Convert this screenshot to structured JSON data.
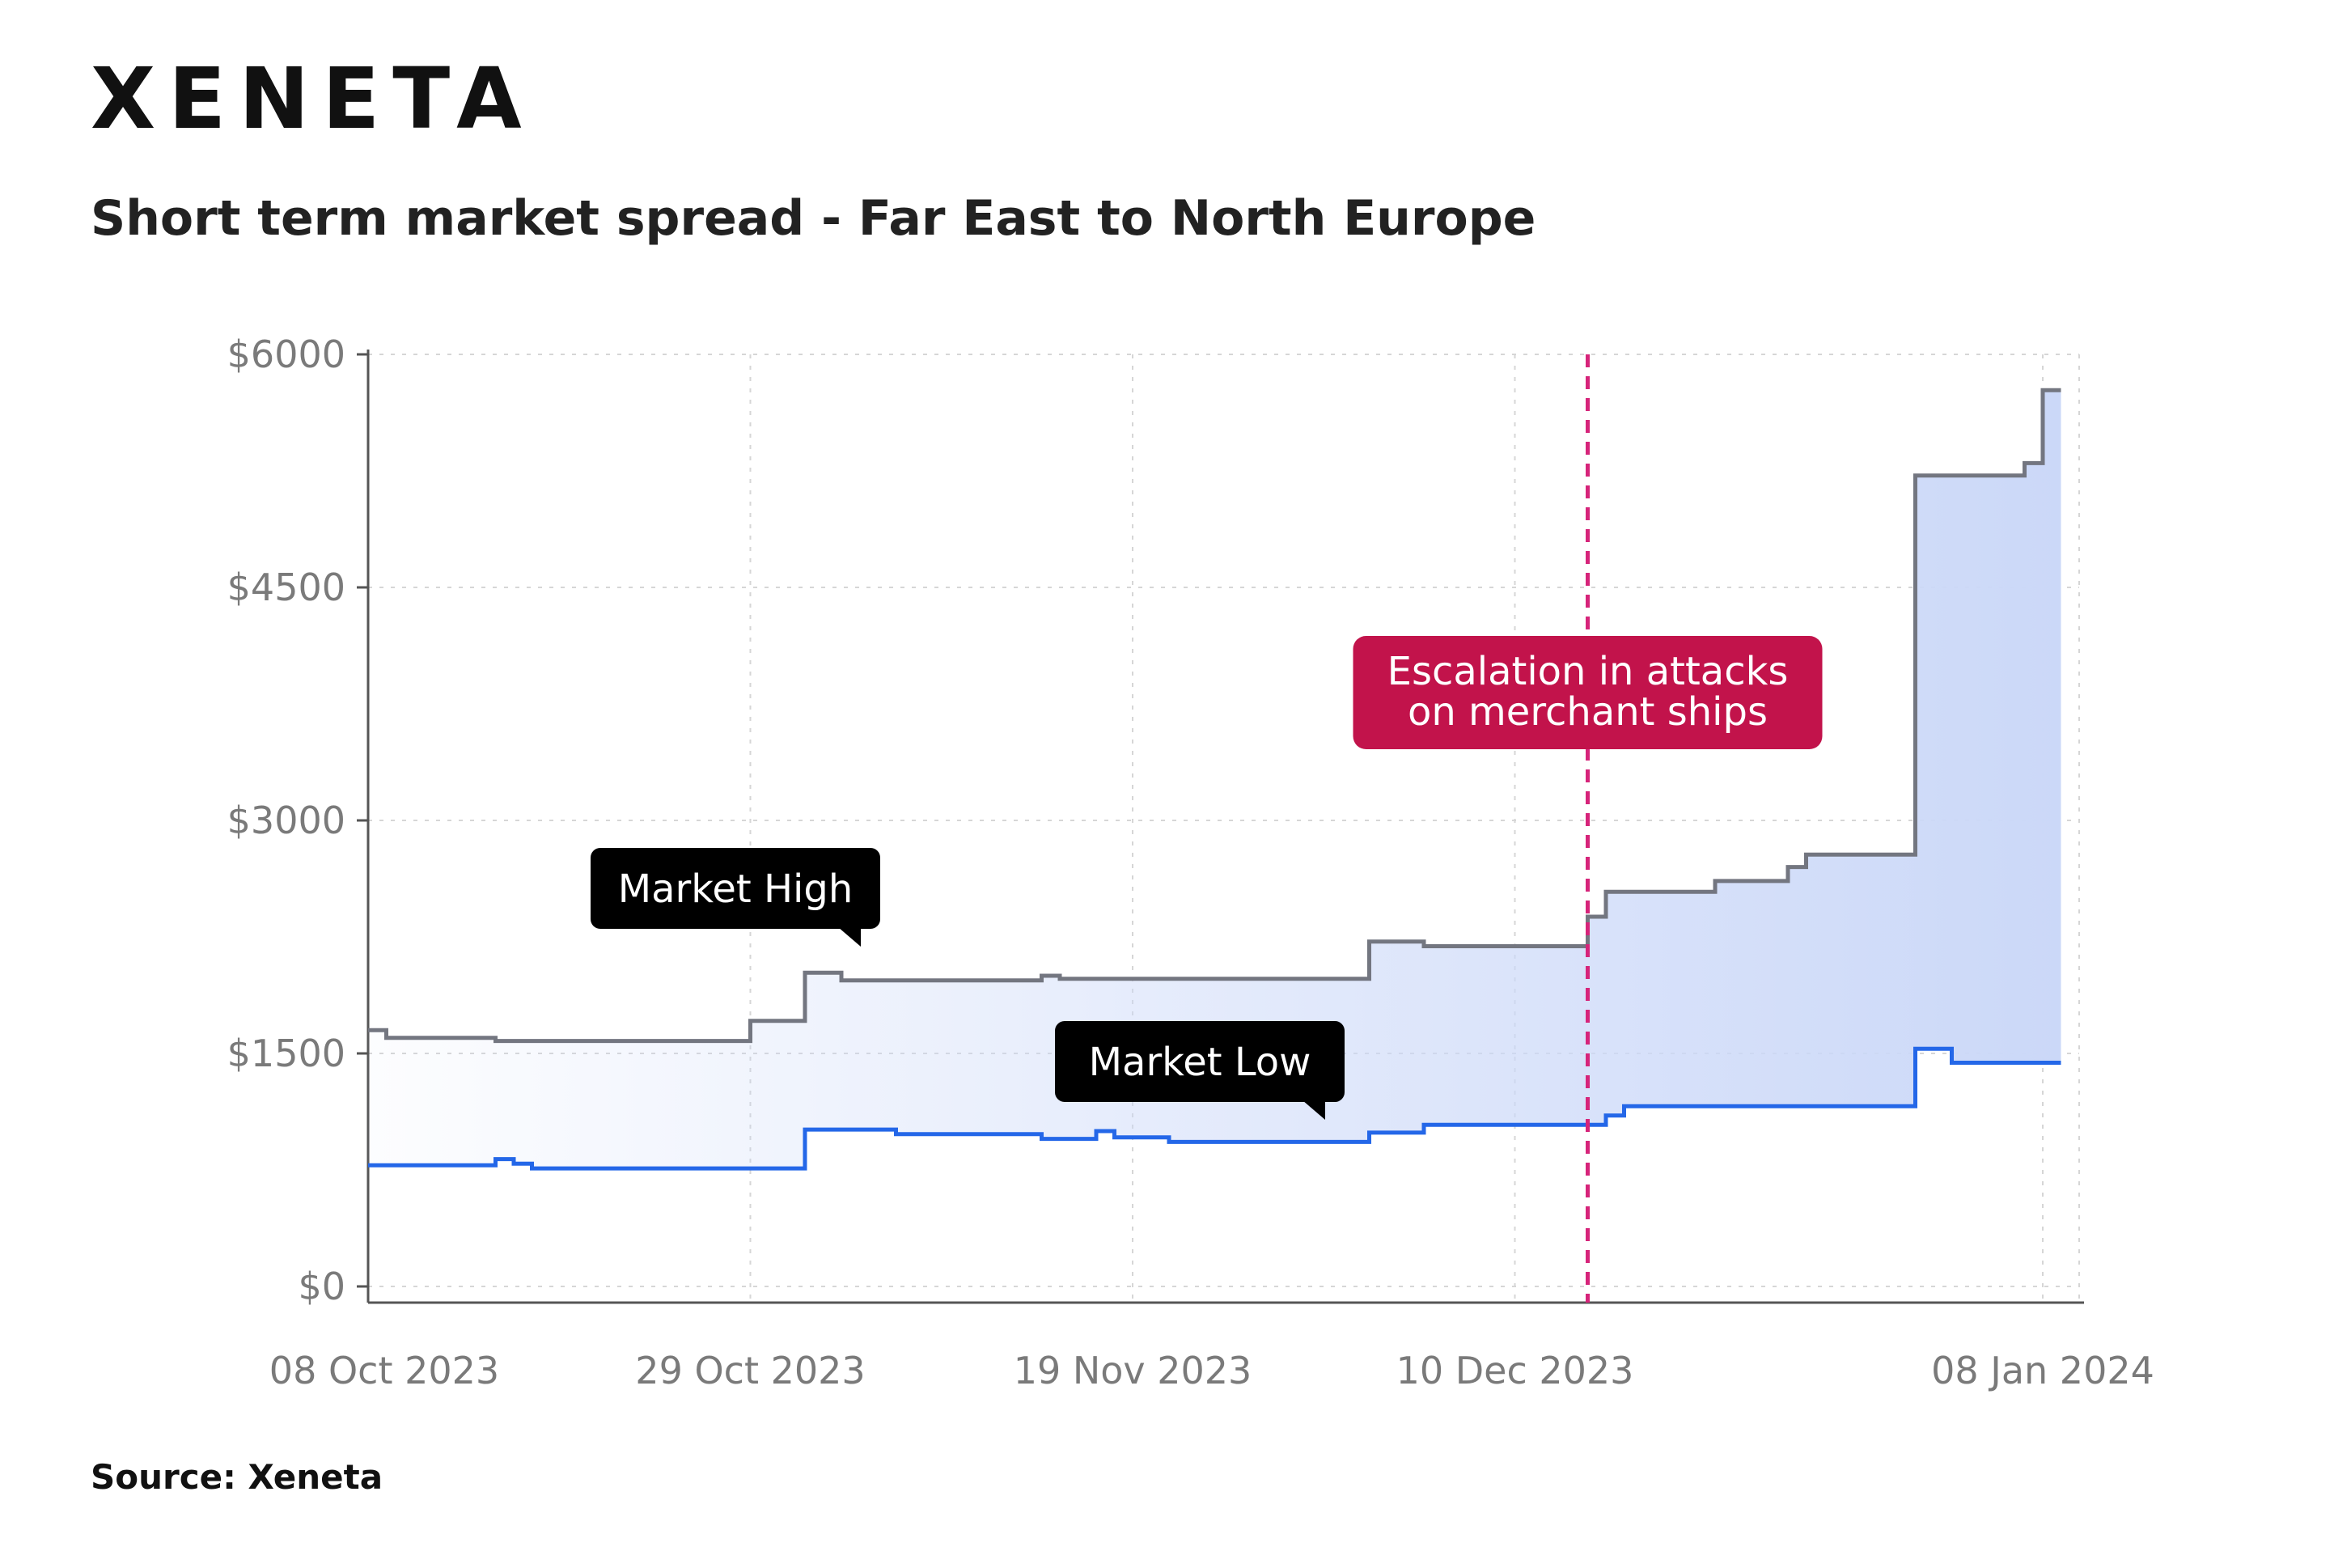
{
  "brand": {
    "logo_text": "XENETA"
  },
  "title": "Short term market spread - Far East to North Europe",
  "source": "Source: Xeneta",
  "colors": {
    "high": "#737680",
    "low": "#2467e8",
    "fill": "#cbd8f8",
    "event": "#c2134b",
    "callout": "#000000"
  },
  "chart_data": {
    "type": "line",
    "title": "Short term market spread - Far East to North Europe",
    "xlabel": "",
    "ylabel": "",
    "x_ticks": [
      "08 Oct 2023",
      "29 Oct 2023",
      "19 Nov 2023",
      "10 Dec 2023",
      "08 Jan 2024"
    ],
    "y_ticks": [
      "$0",
      "$1500",
      "$3000",
      "$4500",
      "$6000"
    ],
    "ylim": [
      0,
      6000
    ],
    "xlim": [
      "2023-10-08",
      "2024-01-10"
    ],
    "grid": true,
    "legend": "none",
    "series": [
      {
        "name": "Market High",
        "step": true,
        "points": [
          [
            "2023-10-08",
            1650
          ],
          [
            "2023-10-09",
            1600
          ],
          [
            "2023-10-15",
            1580
          ],
          [
            "2023-10-29",
            1710
          ],
          [
            "2023-11-01",
            2020
          ],
          [
            "2023-11-03",
            1970
          ],
          [
            "2023-11-14",
            2000
          ],
          [
            "2023-11-15",
            1980
          ],
          [
            "2023-12-02",
            2220
          ],
          [
            "2023-12-05",
            2190
          ],
          [
            "2023-12-14",
            2380
          ],
          [
            "2023-12-15",
            2540
          ],
          [
            "2023-12-21",
            2610
          ],
          [
            "2023-12-25",
            2700
          ],
          [
            "2023-12-26",
            2780
          ],
          [
            "2024-01-01",
            5220
          ],
          [
            "2024-01-07",
            5300
          ],
          [
            "2024-01-08",
            5770
          ],
          [
            "2024-01-09",
            5770
          ]
        ]
      },
      {
        "name": "Market Low",
        "step": true,
        "points": [
          [
            "2023-10-08",
            780
          ],
          [
            "2023-10-15",
            820
          ],
          [
            "2023-10-16",
            790
          ],
          [
            "2023-10-17",
            760
          ],
          [
            "2023-11-01",
            1010
          ],
          [
            "2023-11-06",
            980
          ],
          [
            "2023-11-14",
            950
          ],
          [
            "2023-11-17",
            1000
          ],
          [
            "2023-11-18",
            960
          ],
          [
            "2023-11-21",
            930
          ],
          [
            "2023-12-02",
            990
          ],
          [
            "2023-12-05",
            1040
          ],
          [
            "2023-12-15",
            1100
          ],
          [
            "2023-12-16",
            1160
          ],
          [
            "2024-01-01",
            1530
          ],
          [
            "2024-01-03",
            1440
          ],
          [
            "2024-01-09",
            1440
          ]
        ]
      }
    ],
    "event": {
      "date": "2023-12-14",
      "label_lines": [
        "Escalation in attacks",
        "on merchant ships"
      ]
    },
    "annotations": {
      "high_label": "Market High",
      "low_label": "Market Low"
    }
  }
}
